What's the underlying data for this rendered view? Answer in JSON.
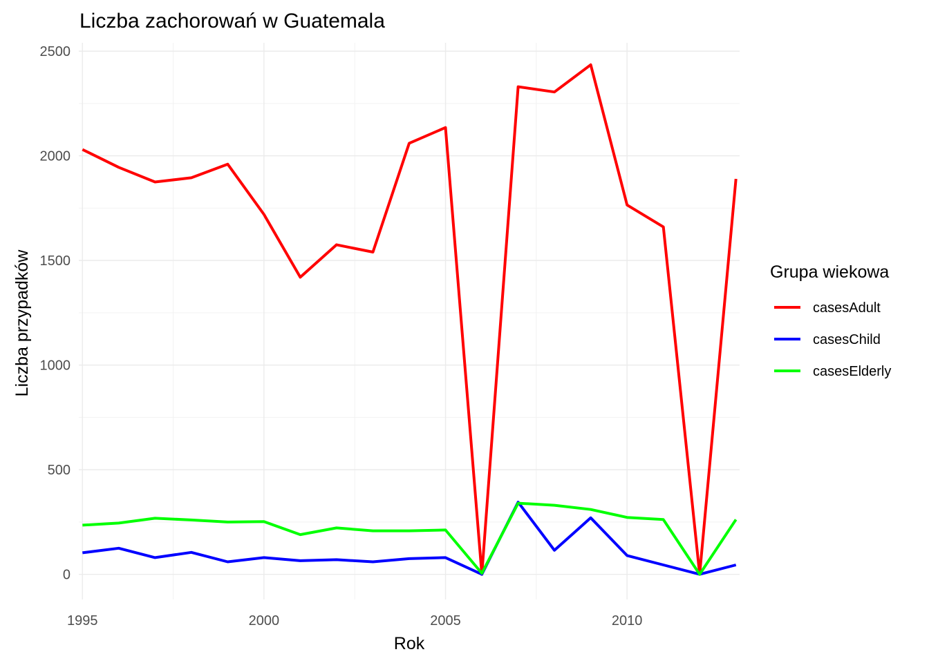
{
  "chart_data": {
    "type": "line",
    "title": "Liczba zachorowań w Guatemala",
    "xlabel": "Rok",
    "ylabel": "Liczba przypadków",
    "xlim": [
      1994.9,
      2013.1
    ],
    "ylim": [
      -120,
      2540
    ],
    "x_ticks": [
      1995,
      2000,
      2005,
      2010
    ],
    "y_ticks": [
      0,
      500,
      1000,
      1500,
      2000,
      2500
    ],
    "grid": true,
    "legend": {
      "title": "Grupa wiekowa",
      "position": "right"
    },
    "x": [
      1995,
      1996,
      1997,
      1998,
      1999,
      2000,
      2001,
      2002,
      2003,
      2004,
      2005,
      2006,
      2007,
      2008,
      2009,
      2010,
      2011,
      2012,
      2013
    ],
    "series": [
      {
        "name": "casesAdult",
        "color": "#ff0000",
        "values": [
          2030,
          1945,
          1875,
          1895,
          1960,
          1720,
          1420,
          1575,
          1540,
          2060,
          2135,
          0,
          2330,
          2305,
          2435,
          1765,
          1660,
          0,
          1890
        ]
      },
      {
        "name": "casesChild",
        "color": "#0000ff",
        "values": [
          103,
          125,
          80,
          105,
          60,
          80,
          65,
          70,
          60,
          75,
          80,
          0,
          345,
          115,
          270,
          90,
          45,
          0,
          45
        ]
      },
      {
        "name": "casesElderly",
        "color": "#00ff00",
        "values": [
          235,
          245,
          268,
          260,
          250,
          252,
          190,
          222,
          208,
          208,
          212,
          5,
          340,
          330,
          310,
          272,
          262,
          0,
          262
        ]
      }
    ]
  }
}
